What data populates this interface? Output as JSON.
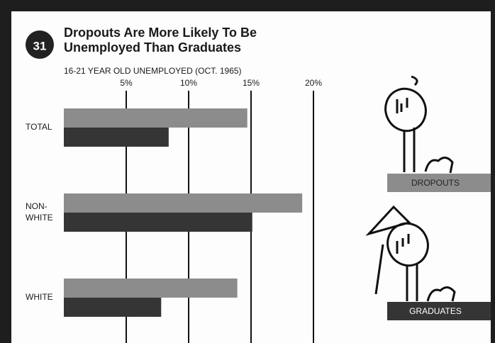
{
  "chart_data": {
    "type": "hbar",
    "badge": "31",
    "title": "Dropouts Are More Likely To Be Unemployed Than Graduates",
    "subtitle": "16-21 YEAR OLD UNEMPLOYED (OCT. 1965)",
    "categories": [
      "TOTAL",
      "NON-WHITE",
      "WHITE"
    ],
    "series": [
      {
        "name": "DROPOUTS",
        "color": "#8c8c8c",
        "values": [
          14.7,
          19.1,
          13.9
        ]
      },
      {
        "name": "GRADUATES",
        "color": "#353535",
        "values": [
          8.4,
          15.1,
          7.8
        ]
      }
    ],
    "xlim": [
      0,
      20
    ],
    "xticks": [
      {
        "value": 5,
        "label": "5%"
      },
      {
        "value": 10,
        "label": "10%"
      },
      {
        "value": 15,
        "label": "15%"
      },
      {
        "value": 20,
        "label": "20%"
      }
    ],
    "grid": true
  }
}
